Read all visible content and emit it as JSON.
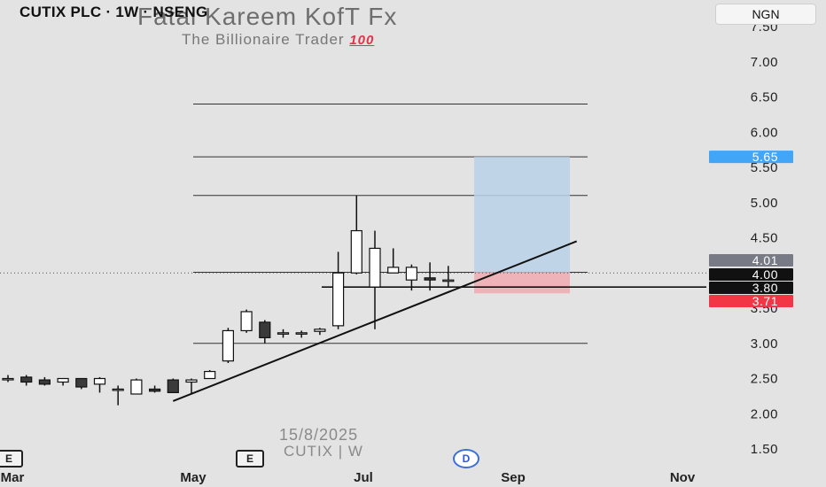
{
  "header": {
    "symbol": "CUTIX PLC · 1W · NSENG",
    "currency_button": "NGN"
  },
  "watermark": {
    "title": "Fatai Kareem KofT Fx",
    "subtitle": "The Billionaire Trader",
    "emoji": "100",
    "date": "15/8/2025",
    "ticker": "CUTIX | W"
  },
  "events": {
    "left_label": "E",
    "mid_label": "E",
    "dividend_label": "D"
  },
  "colors": {
    "background": "#e3e3e3",
    "candle_down": "#3a3a3a",
    "candle_up": "#ffffff",
    "profit_zone": "#b8d1e6",
    "loss_zone": "#eeadb4",
    "target_badge": "#42a5f5",
    "stop_badge": "#f23645",
    "badge_gray": "#787b86",
    "badge_black": "#111111"
  },
  "chart_data": {
    "type": "candlestick",
    "interval": "1W",
    "ylim": [
      1.5,
      7.5
    ],
    "y_ticks": [
      "7.50",
      "7.00",
      "6.50",
      "6.00",
      "5.50",
      "5.00",
      "4.50",
      "3.50",
      "3.00",
      "2.50",
      "2.00",
      "1.50"
    ],
    "x_ticks": [
      "Mar",
      "May",
      "Jul",
      "Sep",
      "Nov"
    ],
    "candles": [
      {
        "o": 2.5,
        "h": 2.55,
        "l": 2.45,
        "c": 2.5
      },
      {
        "o": 2.52,
        "h": 2.55,
        "l": 2.4,
        "c": 2.45
      },
      {
        "o": 2.48,
        "h": 2.52,
        "l": 2.4,
        "c": 2.42
      },
      {
        "o": 2.45,
        "h": 2.5,
        "l": 2.4,
        "c": 2.5
      },
      {
        "o": 2.5,
        "h": 2.5,
        "l": 2.35,
        "c": 2.38
      },
      {
        "o": 2.42,
        "h": 2.52,
        "l": 2.3,
        "c": 2.5
      },
      {
        "o": 2.35,
        "h": 2.4,
        "l": 2.12,
        "c": 2.35
      },
      {
        "o": 2.28,
        "h": 2.5,
        "l": 2.28,
        "c": 2.48
      },
      {
        "o": 2.35,
        "h": 2.4,
        "l": 2.3,
        "c": 2.32
      },
      {
        "o": 2.48,
        "h": 2.5,
        "l": 2.3,
        "c": 2.3
      },
      {
        "o": 2.45,
        "h": 2.5,
        "l": 2.28,
        "c": 2.48
      },
      {
        "o": 2.5,
        "h": 2.62,
        "l": 2.5,
        "c": 2.6
      },
      {
        "o": 2.75,
        "h": 3.22,
        "l": 2.72,
        "c": 3.18
      },
      {
        "o": 3.18,
        "h": 3.48,
        "l": 3.15,
        "c": 3.45
      },
      {
        "o": 3.3,
        "h": 3.33,
        "l": 3.0,
        "c": 3.08
      },
      {
        "o": 3.15,
        "h": 3.2,
        "l": 3.08,
        "c": 3.15
      },
      {
        "o": 3.15,
        "h": 3.18,
        "l": 3.08,
        "c": 3.15
      },
      {
        "o": 3.17,
        "h": 3.22,
        "l": 3.12,
        "c": 3.2
      },
      {
        "o": 3.25,
        "h": 4.3,
        "l": 3.2,
        "c": 4.0
      },
      {
        "o": 4.0,
        "h": 5.1,
        "l": 3.98,
        "c": 4.6
      },
      {
        "o": 3.8,
        "h": 4.6,
        "l": 3.2,
        "c": 4.35
      },
      {
        "o": 4.0,
        "h": 4.35,
        "l": 4.0,
        "c": 4.08
      },
      {
        "o": 3.9,
        "h": 4.12,
        "l": 3.75,
        "c": 4.08
      },
      {
        "o": 3.93,
        "h": 4.15,
        "l": 3.75,
        "c": 3.9
      },
      {
        "o": 3.9,
        "h": 4.1,
        "l": 3.8,
        "c": 3.9
      }
    ],
    "horizontal_levels": [
      6.4,
      5.65,
      5.1,
      4.01,
      3.0
    ],
    "support_line_level": 3.8,
    "current_price_level": 4.0,
    "trendline": {
      "from_index": 9,
      "from_price": 2.18,
      "to_index": 31,
      "to_price": 4.45
    },
    "position": {
      "entry": 4.01,
      "target": 5.65,
      "stop": 3.71
    },
    "price_labels": [
      {
        "value": 5.65,
        "text": "5.65"
      },
      {
        "value": 4.01,
        "text": "4.01"
      },
      {
        "value": 4.0,
        "text": "4.00"
      },
      {
        "value": 3.8,
        "text": "3.80"
      },
      {
        "value": 3.71,
        "text": "3.71"
      }
    ]
  }
}
